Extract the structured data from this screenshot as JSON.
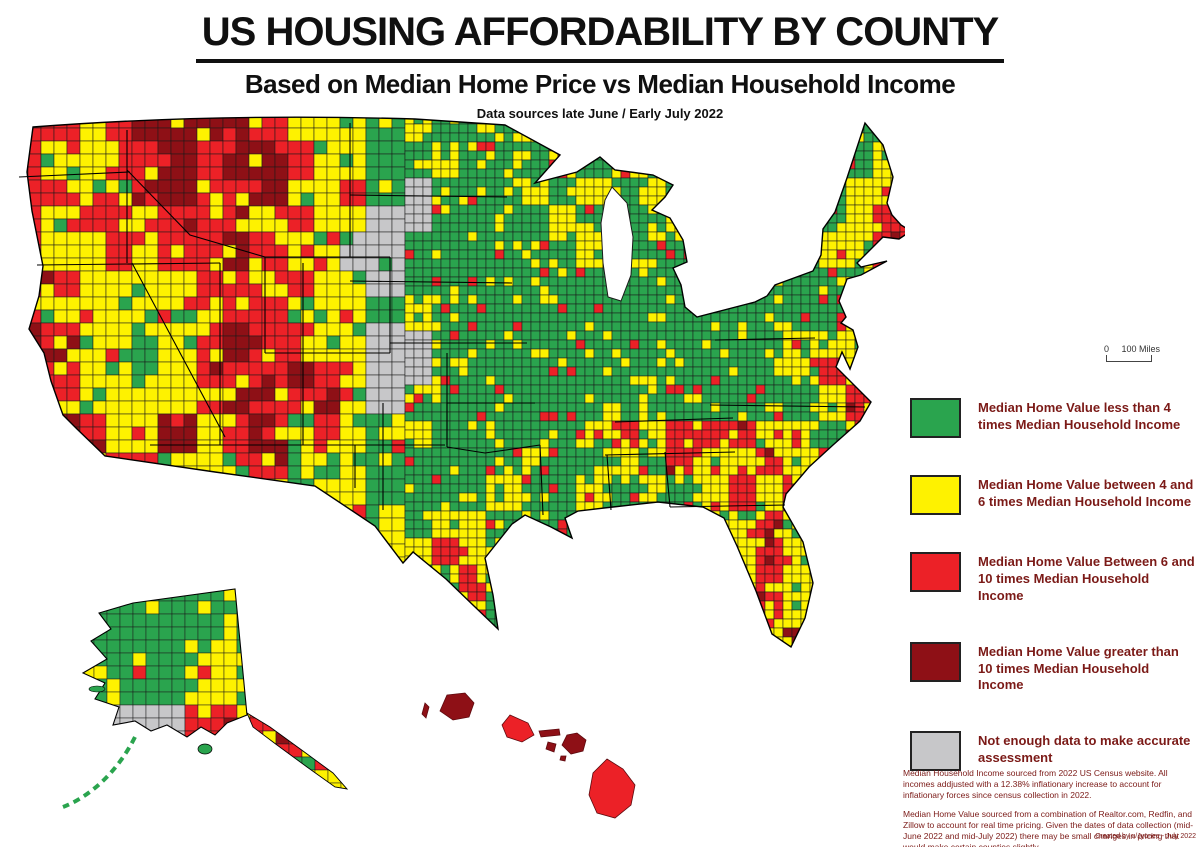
{
  "header": {
    "title": "US HOUSING AFFORDABILITY BY COUNTY",
    "subtitle": "Based on Median Home Price vs Median Household Income",
    "data_note": "Data sources late June / Early July 2022"
  },
  "scalebar": {
    "zero_label": "0",
    "miles_label": "100 Miles"
  },
  "colors": {
    "affordable_green": "#2aa44e",
    "moderate_yellow": "#fef200",
    "high_red": "#ec2127",
    "severe_darkred": "#8e1016",
    "nodata_gray": "#c7c7c9",
    "border_black": "#1a1a1a",
    "legend_text": "#7b1a17"
  },
  "legend": {
    "items": [
      {
        "key": "G",
        "label": "Median Home Value less than 4 times Median Household Income"
      },
      {
        "key": "Y",
        "label": "Median Home Value between 4 and 6 times Median Household Income"
      },
      {
        "key": "R",
        "label": "Median Home Value Between 6 and 10 times Median Household Income"
      },
      {
        "key": "D",
        "label": "Median Home Value greater than 10 times Median Household Income"
      },
      {
        "key": "N",
        "label": "Not enough data to make accurate assessment"
      }
    ]
  },
  "footnotes": {
    "para1": "Median Household Income sourced from 2022 US Census website.  All incomes addjusted with a 12.38% inflationary increase to account for inflationary forces since census collection in 2022.",
    "para2": "Median Home Value sourced from a combination of Realtor.com, Redfin, and Zillow to account for real time pricing.  Given the dates of data collection (mid-June 2022 and mid-July 2022) there may be small changes in pricing that would make certain counties slightly"
  },
  "credit": "Created by u/Jyonee - July 2022",
  "map": {
    "palette_keys": {
      "G": "affordable_green",
      "Y": "moderate_yellow",
      "R": "high_red",
      "D": "severe_darkred",
      "N": "nodata_gray"
    },
    "mainland_grid": [
      "RRYRDDDDRYYYGYGGGGGGGGGGGGGGGG",
      "RYYRRDRDDRYYGGYGGGRGYGGGGGGYGY",
      "RRYYRDRRDYYRGNGGGYGYGYGGGGGGYY",
      "RYRRYRRRYRYYNNGGGGYGGGYGGGGGYR",
      "RYYRYRRDRYYNNGGGGGGYGGGGGGGYYR",
      "RRYYYYRRYRYYNGGGGGGGGGGGGGGGYY",
      "RYYYYYRRRYYYGYGGGGGGGGGGGGGGYY",
      "DRYYGYRDRRYYNNGGGGGGGGGGGGYYYR",
      "RRYYGYRRRDRYNNGGGGGGGGGGGGYRYY",
      "RRYYYYRDRRDYNGGGGGGGGGGGGGGYRY",
      "RDRYYDYRDYRYGYGGGGGYRYRRRYYGRY",
      "RRYRRYYYRYGYGGGGGYGGYGRYYRYRRY",
      "YYYYYRYYYGYYGGGGYGGYGYGYRYRYYY",
      "YYYYYYYYYYRYYGYYGGGYGYYYYRYYYY",
      "YYYYYYYYYYYDYYRYYGYYYYYYYRYYYY",
      "YYYYYYYYYYYYYGYRYGYYYYYYYRYRYY",
      "YYYYYYYYYYYYYYGYGYYYYYYYYRYRRY",
      "YYYYYYYYYYYYYYYYYYYYYYYYYYDRRY"
    ],
    "alaska_grid": [
      "GGGGGGGG",
      "GGGGYGGG",
      "GGGYYRGG",
      "GNNRRRYG",
      "GGRRGGYY",
      "GGGGGGGY"
    ],
    "hawaii_islands": [
      {
        "name": "Niihau",
        "class": "D"
      },
      {
        "name": "Kauai",
        "class": "D"
      },
      {
        "name": "Oahu",
        "class": "R"
      },
      {
        "name": "Molokai",
        "class": "D"
      },
      {
        "name": "Lanai",
        "class": "D"
      },
      {
        "name": "Maui",
        "class": "D"
      },
      {
        "name": "Kahoolawe",
        "class": "D"
      },
      {
        "name": "Hawaii",
        "class": "R"
      }
    ]
  },
  "chart_data": {
    "type": "choropleth-map",
    "title": "US Housing Affordability by County",
    "metric": "Ratio of Median Home Value to Median Household Income",
    "classes": [
      {
        "label": "less than 4 times",
        "color": "#2aa44e"
      },
      {
        "label": "between 4 and 6 times",
        "color": "#fef200"
      },
      {
        "label": "between 6 and 10 times",
        "color": "#ec2127"
      },
      {
        "label": "greater than 10 times",
        "color": "#8e1016"
      },
      {
        "label": "not enough data",
        "color": "#c7c7c9"
      }
    ],
    "insets": [
      "Alaska",
      "Hawaii"
    ],
    "regions_summary": {
      "pacific_coast": "mostly 6-10x with >10x pockets (Bay Area, LA, Seattle)",
      "mountain_west": "heavy 6-10x and >10x (Idaho, W Montana, Utah, Colorado mountains)",
      "great_plains": "mostly <4x with no-data patches in SD, NE, W KS",
      "midwest": "mostly <4x with 4-6x speckle",
      "southeast": "mix of <4x and 4-6x, 6-10x clusters in E Tennessee, Atlanta, coasts",
      "texas": "green north, 4-6x center/south, >10x Big Bend",
      "florida": "mostly 4-6x and 6-10x, >10x at southern tip",
      "northeast": "<4x inland, 4-6x and 6-10x along coast (Boston, NYC metro)",
      "alaska": "mostly <4x, 6-10x near Anchorage, no-data west",
      "hawaii": "6-10x and >10x"
    }
  }
}
